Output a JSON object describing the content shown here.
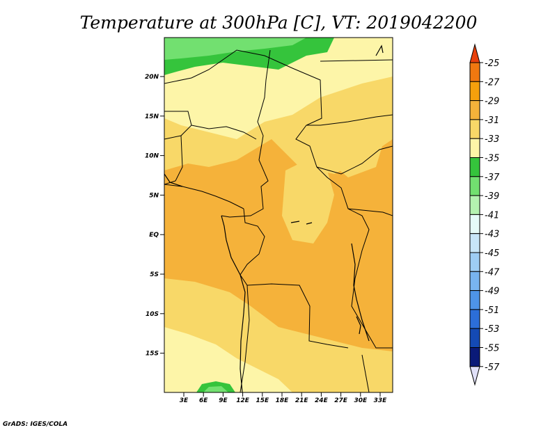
{
  "title": "Temperature at 300hPa [C], VT: 2019042200",
  "credit": "GrADS: IGES/COLA",
  "map": {
    "lat_labels": [
      "20N",
      "15N",
      "10N",
      "5N",
      "EQ",
      "5S",
      "10S",
      "15S"
    ],
    "lon_labels": [
      "3E",
      "6E",
      "9E",
      "12E",
      "15E",
      "18E",
      "21E",
      "24E",
      "27E",
      "30E",
      "33E"
    ]
  },
  "colorbar": {
    "labels": [
      "-25",
      "-27",
      "-29",
      "-31",
      "-33",
      "-35",
      "-37",
      "-39",
      "-41",
      "-43",
      "-45",
      "-47",
      "-49",
      "-51",
      "-53",
      "-55",
      "-57"
    ],
    "colors": [
      "#e8400c",
      "#f07810",
      "#f5a00c",
      "#f5b23a",
      "#f8d868",
      "#fdf5a8",
      "#35c43c",
      "#72e070",
      "#b4f2b0",
      "#e6fbf8",
      "#c8e6f8",
      "#9ecdf4",
      "#78b4f0",
      "#4e94e8",
      "#2c6ed8",
      "#144ab4",
      "#0a1a78",
      "#e0e0f8"
    ]
  }
}
